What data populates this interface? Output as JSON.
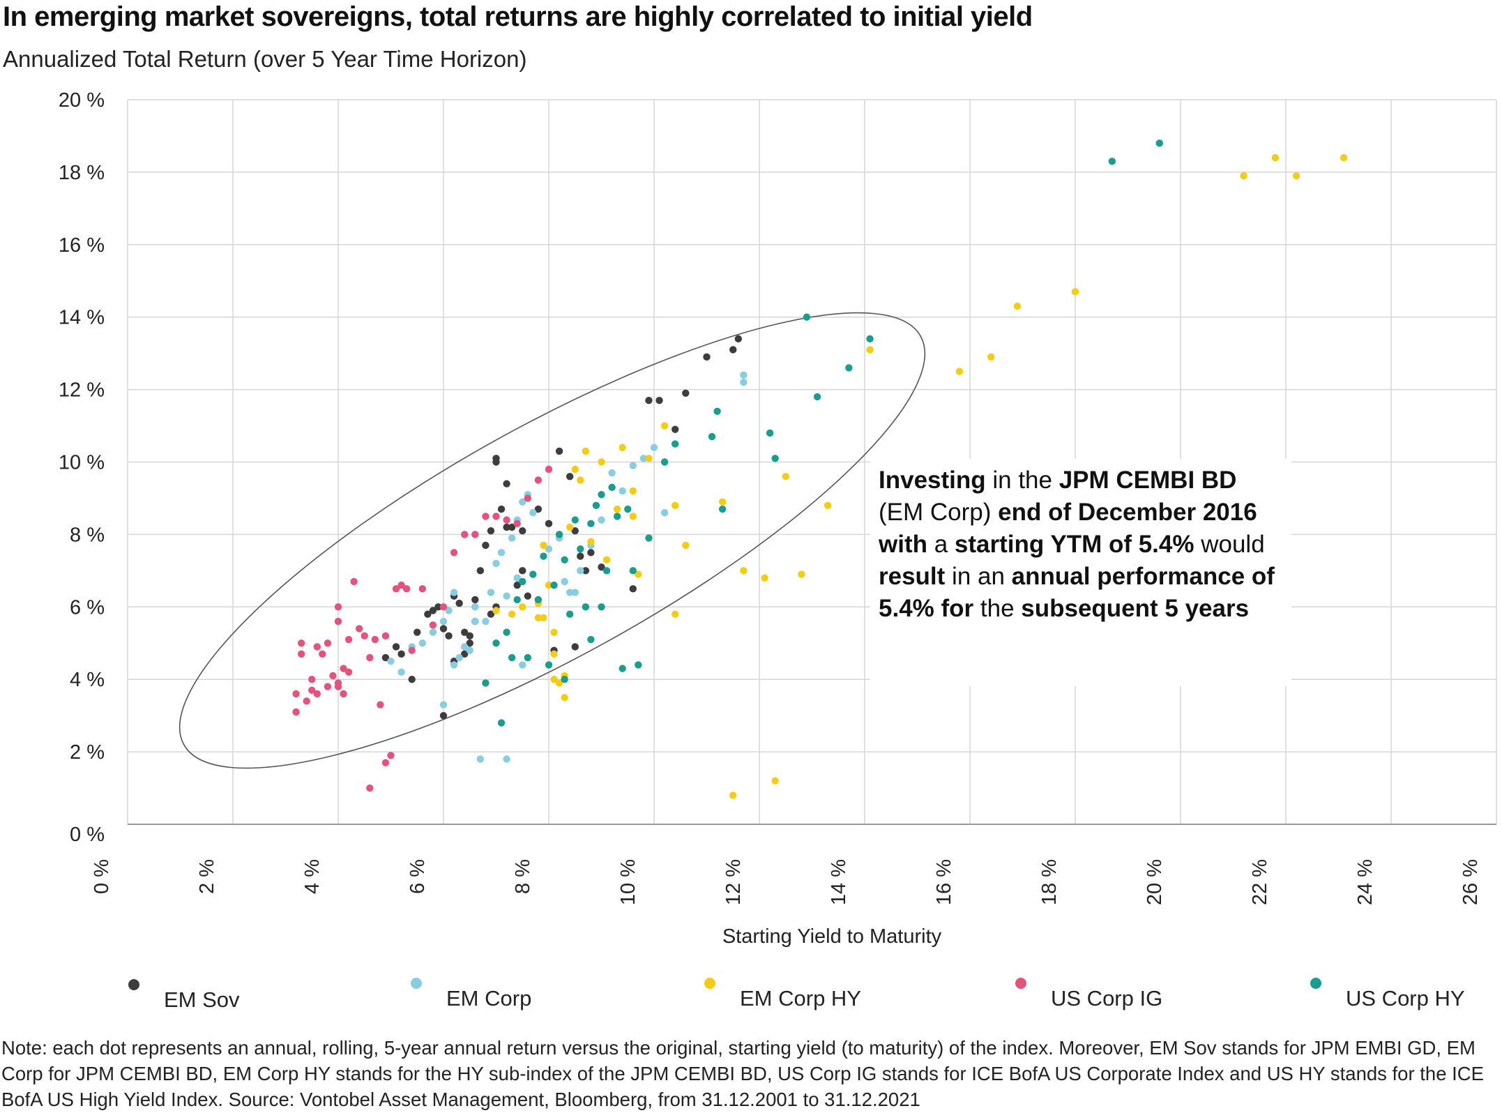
{
  "title": "In emerging market sovereigns, total returns are highly correlated to initial yield",
  "subtitle": "Annualized Total Return (over 5 Year Time Horizon)",
  "callout": {
    "segments": [
      {
        "text": "Investing",
        "bold": true
      },
      {
        "text": " in the ",
        "bold": false
      },
      {
        "text": "JPM CEMBI BD",
        "bold": true
      },
      {
        "text": " (EM Corp) ",
        "bold": false
      },
      {
        "text": "end of December 2016 with",
        "bold": true
      },
      {
        "text": " a ",
        "bold": false
      },
      {
        "text": "starting YTM of 5.4%",
        "bold": true
      },
      {
        "text": " would ",
        "bold": false
      },
      {
        "text": "result",
        "bold": true
      },
      {
        "text": " in an ",
        "bold": false
      },
      {
        "text": "annual performance of 5.4% for",
        "bold": true
      },
      {
        "text": " the ",
        "bold": false
      },
      {
        "text": "subsequent 5 years",
        "bold": true
      }
    ]
  },
  "note": "Note: each dot represents an annual, rolling, 5-year annual return versus the original,  starting yield (to maturity) of the index.  Moreover, EM Sov stands for JPM EMBI GD,  EM Corp for JPM CEMBI BD, EM Corp HY stands for the HY sub-index of the JPM  CEMBI BD, US Corp IG stands for ICE BofA US Corporate Index and US HY stands  for the ICE BofA US High Yield Index.  Source: Vontobel Asset Management, Bloomberg, from 31.12.2001 to 31.12.2021",
  "chart_data": {
    "type": "scatter",
    "xlabel": "Starting Yield to Maturity",
    "ylabel": "",
    "xlim": [
      0,
      26
    ],
    "ylim": [
      0,
      20
    ],
    "x_ticks": [
      "0 %",
      "2 %",
      "4 %",
      "6 %",
      "8 %",
      "10 %",
      "12 %",
      "14 %",
      "16 %",
      "18 %",
      "20 %",
      "22 %",
      "24 %",
      "26 %"
    ],
    "y_ticks": [
      "0 %",
      "2 %",
      "4 %",
      "6 %",
      "8 %",
      "10 %",
      "12 %",
      "14 %",
      "16 %",
      "18 %",
      "20 %"
    ],
    "grid": true,
    "legend_position": "bottom",
    "series": [
      {
        "name": "EM Sov",
        "color": "#3d3d3d",
        "points": [
          [
            4.9,
            4.6
          ],
          [
            5.1,
            4.9
          ],
          [
            5.2,
            4.7
          ],
          [
            5.5,
            5.3
          ],
          [
            5.7,
            5.8
          ],
          [
            5.8,
            5.9
          ],
          [
            5.9,
            6.0
          ],
          [
            6.0,
            5.4
          ],
          [
            6.1,
            5.2
          ],
          [
            6.2,
            6.3
          ],
          [
            6.3,
            6.1
          ],
          [
            6.4,
            5.3
          ],
          [
            6.5,
            5.0
          ],
          [
            6.6,
            6.2
          ],
          [
            6.7,
            7.0
          ],
          [
            6.8,
            7.7
          ],
          [
            6.9,
            8.1
          ],
          [
            7.0,
            10.1
          ],
          [
            7.1,
            8.7
          ],
          [
            7.2,
            9.4
          ],
          [
            7.3,
            8.2
          ],
          [
            7.4,
            6.6
          ],
          [
            7.5,
            7.0
          ],
          [
            7.6,
            6.3
          ],
          [
            7.8,
            8.7
          ],
          [
            8.0,
            8.3
          ],
          [
            8.2,
            10.3
          ],
          [
            8.4,
            9.6
          ],
          [
            8.5,
            8.1
          ],
          [
            8.6,
            7.4
          ],
          [
            8.7,
            7.0
          ],
          [
            8.8,
            7.5
          ],
          [
            9.0,
            7.1
          ],
          [
            9.6,
            6.5
          ],
          [
            9.9,
            11.7
          ],
          [
            10.1,
            11.7
          ],
          [
            10.4,
            10.9
          ],
          [
            10.6,
            11.9
          ],
          [
            11.0,
            12.9
          ],
          [
            11.5,
            13.1
          ],
          [
            11.6,
            13.4
          ],
          [
            5.4,
            4.0
          ],
          [
            6.0,
            3.0
          ],
          [
            6.2,
            4.5
          ],
          [
            6.4,
            4.7
          ],
          [
            6.5,
            5.2
          ],
          [
            6.6,
            5.6
          ],
          [
            7.0,
            6.0
          ],
          [
            6.9,
            5.8
          ],
          [
            7.0,
            10.0
          ],
          [
            7.2,
            8.2
          ],
          [
            7.5,
            8.1
          ],
          [
            8.1,
            4.8
          ],
          [
            8.5,
            4.9
          ]
        ]
      },
      {
        "name": "EM Corp",
        "color": "#88cde2",
        "points": [
          [
            5.0,
            4.5
          ],
          [
            5.2,
            4.2
          ],
          [
            5.4,
            4.9
          ],
          [
            5.6,
            5.0
          ],
          [
            5.8,
            5.3
          ],
          [
            6.0,
            5.6
          ],
          [
            6.1,
            5.9
          ],
          [
            6.2,
            4.4
          ],
          [
            6.4,
            4.9
          ],
          [
            6.6,
            5.6
          ],
          [
            6.8,
            5.6
          ],
          [
            6.9,
            6.4
          ],
          [
            7.0,
            7.2
          ],
          [
            7.1,
            7.5
          ],
          [
            7.2,
            6.3
          ],
          [
            7.3,
            7.9
          ],
          [
            7.4,
            8.4
          ],
          [
            7.5,
            8.9
          ],
          [
            7.6,
            9.1
          ],
          [
            7.7,
            8.6
          ],
          [
            7.8,
            6.2
          ],
          [
            8.0,
            7.6
          ],
          [
            8.2,
            7.9
          ],
          [
            8.3,
            6.7
          ],
          [
            8.5,
            6.4
          ],
          [
            8.6,
            7.0
          ],
          [
            8.8,
            7.7
          ],
          [
            9.0,
            8.4
          ],
          [
            9.2,
            9.7
          ],
          [
            9.4,
            9.2
          ],
          [
            9.6,
            9.9
          ],
          [
            9.8,
            10.1
          ],
          [
            10.0,
            10.4
          ],
          [
            10.2,
            8.6
          ],
          [
            11.7,
            12.2
          ],
          [
            11.7,
            12.4
          ],
          [
            6.0,
            3.3
          ],
          [
            6.7,
            1.8
          ],
          [
            7.2,
            1.8
          ],
          [
            6.2,
            6.4
          ],
          [
            6.6,
            6.0
          ],
          [
            7.4,
            6.8
          ],
          [
            8.4,
            6.4
          ],
          [
            6.3,
            4.6
          ],
          [
            6.5,
            4.8
          ],
          [
            7.5,
            4.4
          ]
        ]
      },
      {
        "name": "EM Corp HY",
        "color": "#f5cc14",
        "points": [
          [
            7.8,
            6.1
          ],
          [
            7.9,
            5.7
          ],
          [
            8.0,
            6.6
          ],
          [
            8.1,
            4.7
          ],
          [
            8.2,
            3.9
          ],
          [
            8.3,
            3.5
          ],
          [
            8.4,
            8.2
          ],
          [
            8.5,
            9.8
          ],
          [
            8.6,
            9.5
          ],
          [
            8.7,
            10.3
          ],
          [
            8.8,
            7.8
          ],
          [
            9.0,
            10.0
          ],
          [
            9.1,
            7.3
          ],
          [
            9.3,
            8.7
          ],
          [
            9.4,
            10.4
          ],
          [
            9.6,
            8.5
          ],
          [
            9.7,
            6.9
          ],
          [
            9.9,
            10.1
          ],
          [
            10.2,
            11.0
          ],
          [
            10.4,
            8.8
          ],
          [
            10.6,
            7.7
          ],
          [
            10.4,
            5.8
          ],
          [
            11.3,
            8.9
          ],
          [
            11.5,
            0.8
          ],
          [
            11.7,
            7.0
          ],
          [
            12.1,
            6.8
          ],
          [
            12.3,
            1.2
          ],
          [
            12.5,
            9.6
          ],
          [
            12.8,
            6.9
          ],
          [
            13.3,
            8.8
          ],
          [
            14.1,
            13.1
          ],
          [
            15.8,
            12.5
          ],
          [
            16.4,
            12.9
          ],
          [
            16.9,
            14.3
          ],
          [
            18.0,
            14.7
          ],
          [
            21.2,
            17.9
          ],
          [
            21.8,
            18.4
          ],
          [
            22.2,
            17.9
          ],
          [
            23.1,
            18.4
          ],
          [
            7.8,
            5.7
          ],
          [
            8.1,
            5.3
          ],
          [
            7.3,
            5.8
          ],
          [
            7.5,
            6.0
          ],
          [
            7.0,
            5.9
          ],
          [
            8.3,
            4.1
          ],
          [
            8.1,
            4.0
          ],
          [
            7.9,
            7.7
          ],
          [
            9.6,
            9.2
          ]
        ]
      },
      {
        "name": "US Corp IG",
        "color": "#e3537d",
        "points": [
          [
            3.2,
            3.6
          ],
          [
            3.2,
            3.1
          ],
          [
            3.3,
            4.7
          ],
          [
            3.3,
            5.0
          ],
          [
            3.4,
            3.4
          ],
          [
            3.5,
            4.0
          ],
          [
            3.6,
            3.6
          ],
          [
            3.7,
            4.7
          ],
          [
            3.8,
            5.0
          ],
          [
            3.8,
            3.8
          ],
          [
            3.9,
            4.1
          ],
          [
            4.0,
            5.6
          ],
          [
            4.0,
            6.0
          ],
          [
            4.0,
            3.8
          ],
          [
            4.1,
            3.6
          ],
          [
            4.2,
            4.2
          ],
          [
            4.3,
            6.7
          ],
          [
            4.4,
            5.4
          ],
          [
            4.5,
            5.2
          ],
          [
            4.6,
            4.6
          ],
          [
            4.7,
            5.1
          ],
          [
            4.8,
            3.3
          ],
          [
            4.9,
            5.2
          ],
          [
            5.1,
            6.5
          ],
          [
            5.2,
            6.6
          ],
          [
            5.3,
            6.5
          ],
          [
            5.4,
            4.8
          ],
          [
            5.6,
            6.5
          ],
          [
            5.8,
            5.5
          ],
          [
            6.0,
            6.0
          ],
          [
            6.2,
            7.5
          ],
          [
            6.4,
            8.0
          ],
          [
            6.6,
            8.0
          ],
          [
            6.8,
            8.5
          ],
          [
            7.0,
            8.5
          ],
          [
            7.2,
            8.4
          ],
          [
            7.4,
            8.3
          ],
          [
            7.6,
            9.0
          ],
          [
            7.8,
            9.5
          ],
          [
            8.0,
            9.8
          ],
          [
            4.6,
            1.0
          ],
          [
            4.9,
            1.7
          ],
          [
            5.0,
            1.9
          ],
          [
            3.5,
            3.7
          ],
          [
            3.6,
            4.9
          ],
          [
            4.0,
            3.9
          ],
          [
            4.1,
            4.3
          ],
          [
            4.2,
            5.1
          ]
        ]
      },
      {
        "name": "US Corp HY",
        "color": "#1a9c8e",
        "points": [
          [
            6.8,
            3.9
          ],
          [
            7.0,
            5.0
          ],
          [
            7.1,
            2.8
          ],
          [
            7.3,
            4.6
          ],
          [
            7.4,
            6.2
          ],
          [
            7.5,
            6.7
          ],
          [
            7.6,
            4.6
          ],
          [
            7.7,
            6.9
          ],
          [
            7.8,
            6.2
          ],
          [
            7.9,
            7.4
          ],
          [
            8.0,
            4.4
          ],
          [
            8.1,
            6.6
          ],
          [
            8.2,
            8.0
          ],
          [
            8.3,
            7.3
          ],
          [
            8.4,
            5.8
          ],
          [
            8.5,
            8.4
          ],
          [
            8.6,
            7.6
          ],
          [
            8.7,
            6.0
          ],
          [
            8.8,
            8.3
          ],
          [
            8.9,
            8.8
          ],
          [
            9.0,
            9.1
          ],
          [
            9.1,
            7.0
          ],
          [
            9.2,
            9.3
          ],
          [
            9.3,
            8.5
          ],
          [
            9.4,
            4.3
          ],
          [
            9.5,
            8.7
          ],
          [
            9.6,
            7.0
          ],
          [
            9.9,
            7.9
          ],
          [
            10.2,
            10.0
          ],
          [
            10.4,
            10.5
          ],
          [
            11.1,
            10.7
          ],
          [
            11.2,
            11.4
          ],
          [
            11.3,
            8.7
          ],
          [
            12.2,
            10.8
          ],
          [
            12.3,
            10.1
          ],
          [
            12.9,
            14.0
          ],
          [
            13.1,
            11.8
          ],
          [
            13.7,
            12.6
          ],
          [
            14.1,
            13.4
          ],
          [
            18.7,
            18.3
          ],
          [
            19.6,
            18.8
          ],
          [
            8.3,
            4.0
          ],
          [
            8.8,
            5.1
          ],
          [
            9.7,
            4.4
          ],
          [
            9.0,
            6.0
          ],
          [
            7.2,
            5.3
          ]
        ]
      }
    ]
  }
}
